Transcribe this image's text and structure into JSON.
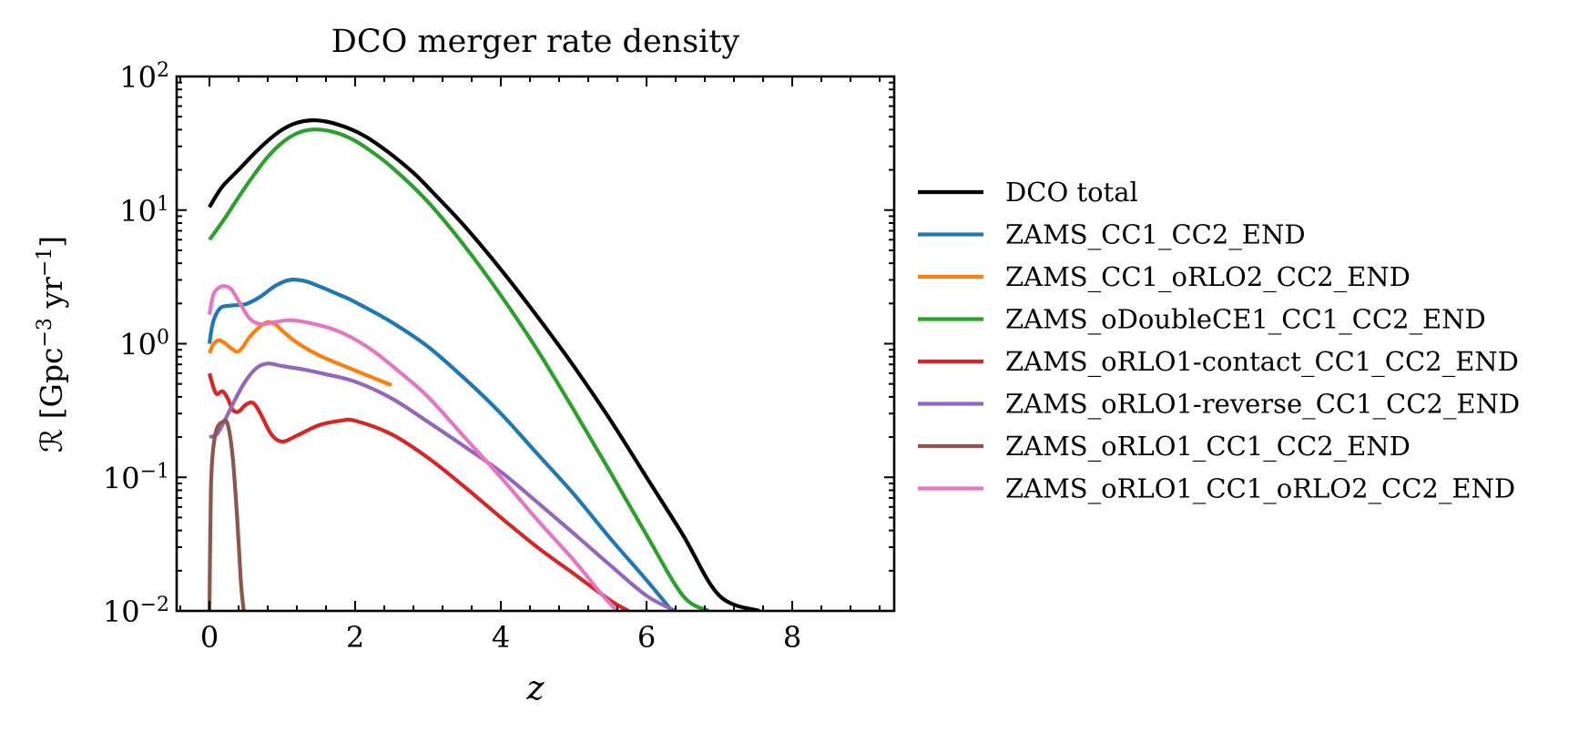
{
  "chart_data": {
    "type": "line",
    "title": "DCO merger rate density",
    "xlabel": "z",
    "ylabel": {
      "prefix": "ℛ [Gpc",
      "exp1": "−3",
      "mid": " yr",
      "exp2": "−1",
      "suffix": "]"
    },
    "xlim": [
      -0.45,
      9.4
    ],
    "ylim": [
      0.01,
      100
    ],
    "yscale": "log",
    "x_ticks": [
      0,
      2,
      4,
      6,
      8
    ],
    "x_tick_labels": [
      "0",
      "2",
      "4",
      "6",
      "8"
    ],
    "y_ticks": [
      0.01,
      0.1,
      1,
      10,
      100
    ],
    "y_tick_labels": [
      {
        "base": "10",
        "exp": "−2"
      },
      {
        "base": "10",
        "exp": "−1"
      },
      {
        "base": "10",
        "exp": "0"
      },
      {
        "base": "10",
        "exp": "1"
      },
      {
        "base": "10",
        "exp": "2"
      }
    ],
    "grid": false,
    "legend_position": "outside-right",
    "series": [
      {
        "name": "DCO total",
        "color": "#000000",
        "points": [
          [
            0,
            10.5
          ],
          [
            0.1,
            13
          ],
          [
            0.2,
            15.5
          ],
          [
            0.4,
            20
          ],
          [
            0.6,
            26
          ],
          [
            0.8,
            33
          ],
          [
            1.0,
            40
          ],
          [
            1.2,
            45
          ],
          [
            1.4,
            47
          ],
          [
            1.6,
            46
          ],
          [
            1.8,
            43
          ],
          [
            2.0,
            39
          ],
          [
            2.2,
            34
          ],
          [
            2.5,
            26
          ],
          [
            2.8,
            19
          ],
          [
            3.0,
            14.8
          ],
          [
            3.5,
            7.6
          ],
          [
            4.0,
            3.6
          ],
          [
            4.5,
            1.6
          ],
          [
            5.0,
            0.68
          ],
          [
            5.5,
            0.27
          ],
          [
            6.0,
            0.1
          ],
          [
            6.5,
            0.037
          ],
          [
            7.0,
            0.013
          ],
          [
            7.55,
            0.01
          ]
        ]
      },
      {
        "name": "ZAMS_CC1_CC2_END",
        "color": "#1f77b4",
        "points": [
          [
            0,
            1.0
          ],
          [
            0.05,
            1.45
          ],
          [
            0.15,
            1.85
          ],
          [
            0.3,
            1.93
          ],
          [
            0.5,
            1.98
          ],
          [
            0.7,
            2.25
          ],
          [
            0.9,
            2.7
          ],
          [
            1.1,
            3.0
          ],
          [
            1.3,
            2.95
          ],
          [
            1.5,
            2.7
          ],
          [
            1.8,
            2.3
          ],
          [
            2.0,
            2.05
          ],
          [
            2.5,
            1.45
          ],
          [
            3.0,
            0.95
          ],
          [
            3.5,
            0.55
          ],
          [
            4.0,
            0.3
          ],
          [
            4.5,
            0.15
          ],
          [
            5.0,
            0.075
          ],
          [
            5.5,
            0.035
          ],
          [
            6.0,
            0.017
          ],
          [
            6.35,
            0.01
          ]
        ]
      },
      {
        "name": "ZAMS_CC1_oRLO2_CC2_END",
        "color": "#ff7f0e",
        "points": [
          [
            0,
            0.85
          ],
          [
            0.05,
            0.98
          ],
          [
            0.12,
            1.06
          ],
          [
            0.2,
            1.02
          ],
          [
            0.3,
            0.92
          ],
          [
            0.38,
            0.87
          ],
          [
            0.45,
            0.93
          ],
          [
            0.55,
            1.12
          ],
          [
            0.7,
            1.35
          ],
          [
            0.8,
            1.45
          ],
          [
            0.9,
            1.4
          ],
          [
            1.0,
            1.25
          ],
          [
            1.2,
            1.02
          ],
          [
            1.5,
            0.82
          ],
          [
            2.0,
            0.63
          ],
          [
            2.5,
            0.49
          ]
        ]
      },
      {
        "name": "ZAMS_oDoubleCE1_CC1_CC2_END",
        "color": "#2ca02c",
        "points": [
          [
            0,
            6
          ],
          [
            0.2,
            8.5
          ],
          [
            0.4,
            12.5
          ],
          [
            0.6,
            18
          ],
          [
            0.8,
            25
          ],
          [
            1.0,
            32
          ],
          [
            1.2,
            37.5
          ],
          [
            1.4,
            40
          ],
          [
            1.6,
            39.5
          ],
          [
            1.8,
            37
          ],
          [
            2.0,
            33
          ],
          [
            2.2,
            28
          ],
          [
            2.5,
            21
          ],
          [
            3.0,
            11.5
          ],
          [
            3.5,
            5.4
          ],
          [
            4.0,
            2.3
          ],
          [
            4.5,
            0.9
          ],
          [
            5.0,
            0.32
          ],
          [
            5.5,
            0.11
          ],
          [
            6.0,
            0.037
          ],
          [
            6.5,
            0.013
          ],
          [
            6.85,
            0.01
          ]
        ]
      },
      {
        "name": "ZAMS_oRLO1-contact_CC1_CC2_END",
        "color": "#d62728",
        "points": [
          [
            0,
            0.6
          ],
          [
            0.05,
            0.48
          ],
          [
            0.1,
            0.42
          ],
          [
            0.18,
            0.44
          ],
          [
            0.25,
            0.39
          ],
          [
            0.32,
            0.32
          ],
          [
            0.4,
            0.31
          ],
          [
            0.5,
            0.35
          ],
          [
            0.6,
            0.36
          ],
          [
            0.7,
            0.3
          ],
          [
            0.85,
            0.21
          ],
          [
            1.0,
            0.185
          ],
          [
            1.2,
            0.205
          ],
          [
            1.5,
            0.245
          ],
          [
            1.8,
            0.265
          ],
          [
            2.0,
            0.265
          ],
          [
            2.5,
            0.21
          ],
          [
            3.0,
            0.14
          ],
          [
            3.5,
            0.085
          ],
          [
            4.0,
            0.05
          ],
          [
            4.5,
            0.03
          ],
          [
            5.0,
            0.019
          ],
          [
            5.5,
            0.012
          ],
          [
            5.75,
            0.01
          ]
        ]
      },
      {
        "name": "ZAMS_oRLO1-reverse_CC1_CC2_END",
        "color": "#9467bd",
        "points": [
          [
            0,
            0.2
          ],
          [
            0.1,
            0.21
          ],
          [
            0.2,
            0.26
          ],
          [
            0.35,
            0.38
          ],
          [
            0.5,
            0.53
          ],
          [
            0.65,
            0.66
          ],
          [
            0.8,
            0.71
          ],
          [
            1.0,
            0.68
          ],
          [
            1.3,
            0.64
          ],
          [
            1.6,
            0.59
          ],
          [
            2.0,
            0.52
          ],
          [
            2.5,
            0.39
          ],
          [
            3.0,
            0.26
          ],
          [
            3.5,
            0.17
          ],
          [
            4.0,
            0.11
          ],
          [
            4.5,
            0.065
          ],
          [
            5.0,
            0.038
          ],
          [
            5.5,
            0.022
          ],
          [
            6.0,
            0.013
          ],
          [
            6.4,
            0.01
          ]
        ]
      },
      {
        "name": "ZAMS_oRLO1_CC1_CC2_END",
        "color": "#8c564b",
        "points": [
          [
            0.0,
            0.01
          ],
          [
            0.02,
            0.08
          ],
          [
            0.05,
            0.16
          ],
          [
            0.1,
            0.23
          ],
          [
            0.18,
            0.26
          ],
          [
            0.25,
            0.25
          ],
          [
            0.32,
            0.14
          ],
          [
            0.38,
            0.05
          ],
          [
            0.43,
            0.017
          ],
          [
            0.47,
            0.01
          ]
        ]
      },
      {
        "name": "ZAMS_oRLO1_CC1_oRLO2_CC2_END",
        "color": "#e377c2",
        "points": [
          [
            0,
            1.65
          ],
          [
            0.05,
            2.3
          ],
          [
            0.12,
            2.6
          ],
          [
            0.2,
            2.7
          ],
          [
            0.3,
            2.55
          ],
          [
            0.42,
            2.0
          ],
          [
            0.55,
            1.55
          ],
          [
            0.7,
            1.4
          ],
          [
            0.9,
            1.45
          ],
          [
            1.1,
            1.5
          ],
          [
            1.4,
            1.42
          ],
          [
            1.8,
            1.22
          ],
          [
            2.2,
            0.92
          ],
          [
            2.6,
            0.62
          ],
          [
            3.0,
            0.4
          ],
          [
            3.5,
            0.2
          ],
          [
            4.0,
            0.1
          ],
          [
            4.5,
            0.048
          ],
          [
            5.0,
            0.024
          ],
          [
            5.4,
            0.013
          ],
          [
            5.6,
            0.01
          ]
        ]
      }
    ]
  }
}
